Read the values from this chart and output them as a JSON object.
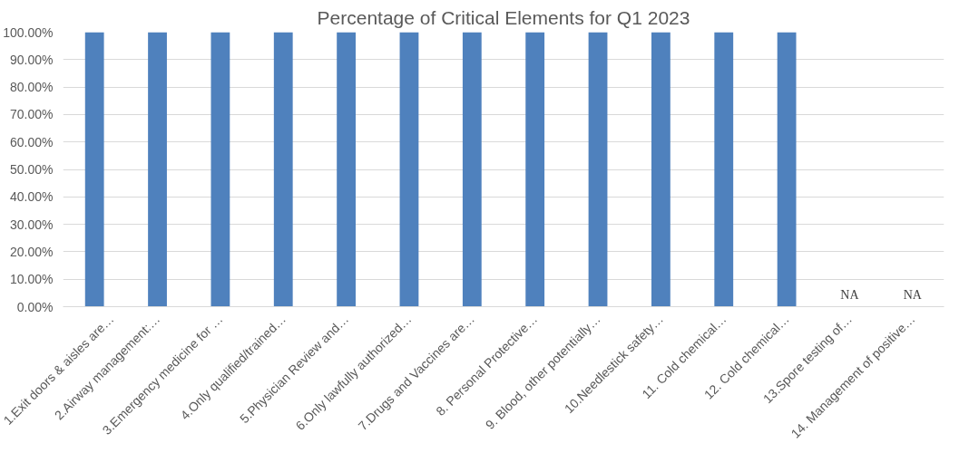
{
  "chart_data": {
    "type": "bar",
    "title": "Percentage of Critical Elements for Q1 2023",
    "categories": [
      "1.Exit doors & aisles are…",
      "2.Airway management:…",
      "3.Emergency medicine for …",
      "4.Only qualified/trained…",
      "5.Physician Review and…",
      "6.Only lawfully authorized…",
      "7.Drugs and Vaccines are…",
      "8. Personal Protective…",
      "9. Blood, other potentially…",
      "10.Needlestick safety…",
      "11. Cold chemical…",
      "12. Cold chemical…",
      "13.Spore testing of…",
      "14. Management of positive…"
    ],
    "values": [
      100,
      100,
      100,
      100,
      100,
      100,
      100,
      100,
      100,
      100,
      100,
      100,
      null,
      null
    ],
    "value_labels": [
      null,
      null,
      null,
      null,
      null,
      null,
      null,
      null,
      null,
      null,
      null,
      null,
      "NA",
      "NA"
    ],
    "color": "#4f81bd",
    "ylim": [
      0,
      100
    ],
    "yticks": [
      {
        "value": 0,
        "label": "0.00%"
      },
      {
        "value": 10,
        "label": "10.00%"
      },
      {
        "value": 20,
        "label": "20.00%"
      },
      {
        "value": 30,
        "label": "30.00%"
      },
      {
        "value": 40,
        "label": "40.00%"
      },
      {
        "value": 50,
        "label": "50.00%"
      },
      {
        "value": 60,
        "label": "60.00%"
      },
      {
        "value": 70,
        "label": "70.00%"
      },
      {
        "value": 80,
        "label": "80.00%"
      },
      {
        "value": 90,
        "label": "90.00%"
      },
      {
        "value": 100,
        "label": "100.00%"
      }
    ],
    "grid": "y"
  }
}
